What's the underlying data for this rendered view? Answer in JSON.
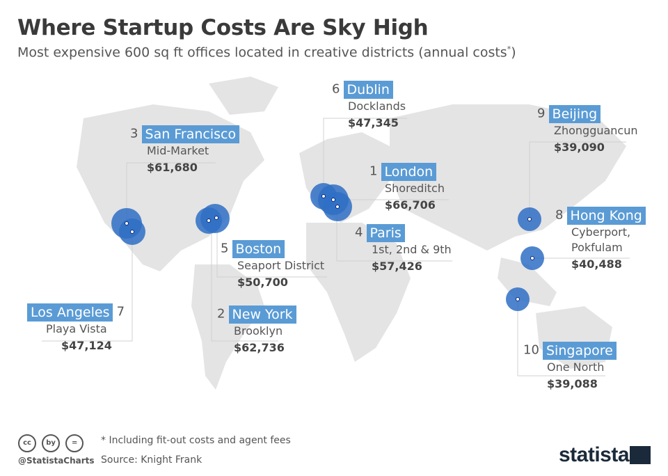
{
  "title": "Where Startup Costs Are Sky High",
  "subtitle": "Most expensive 600 sq ft offices located in creative districts (annual costs",
  "subtitle_mark": "*",
  "subtitle_close": ")",
  "colors": {
    "accent": "#5a9bd5",
    "circle": "#2f6fc4",
    "overlap": "#0a2a78",
    "land": "#e4e4e4"
  },
  "cities": [
    {
      "rank": "1",
      "name": "London",
      "district": "Shoreditch",
      "cost": "$66,706"
    },
    {
      "rank": "2",
      "name": "New York",
      "district": "Brooklyn",
      "cost": "$62,736"
    },
    {
      "rank": "3",
      "name": "San Francisco",
      "district": "Mid-Market",
      "cost": "$61,680"
    },
    {
      "rank": "4",
      "name": "Paris",
      "district": "1st, 2nd & 9th",
      "cost": "$57,426"
    },
    {
      "rank": "5",
      "name": "Boston",
      "district": "Seaport District",
      "cost": "$50,700"
    },
    {
      "rank": "6",
      "name": "Dublin",
      "district": "Docklands",
      "cost": "$47,345"
    },
    {
      "rank": "7",
      "name": "Los Angeles",
      "district": "Playa Vista",
      "cost": "$47,124"
    },
    {
      "rank": "8",
      "name": "Hong Kong",
      "district": "Cyberport,",
      "district2": "Pokfulam",
      "cost": "$40,488"
    },
    {
      "rank": "9",
      "name": "Beijing",
      "district": "Zhongguancun",
      "cost": "$39,090"
    },
    {
      "rank": "10",
      "name": "Singapore",
      "district": "One North",
      "cost": "$39,088"
    }
  ],
  "footer": {
    "note": "* Including fit-out costs and agent fees",
    "source": "Source: Knight Frank",
    "handle": "@StatistaCharts",
    "brand": "statista",
    "cc_icons": [
      "cc",
      "by",
      "="
    ]
  }
}
